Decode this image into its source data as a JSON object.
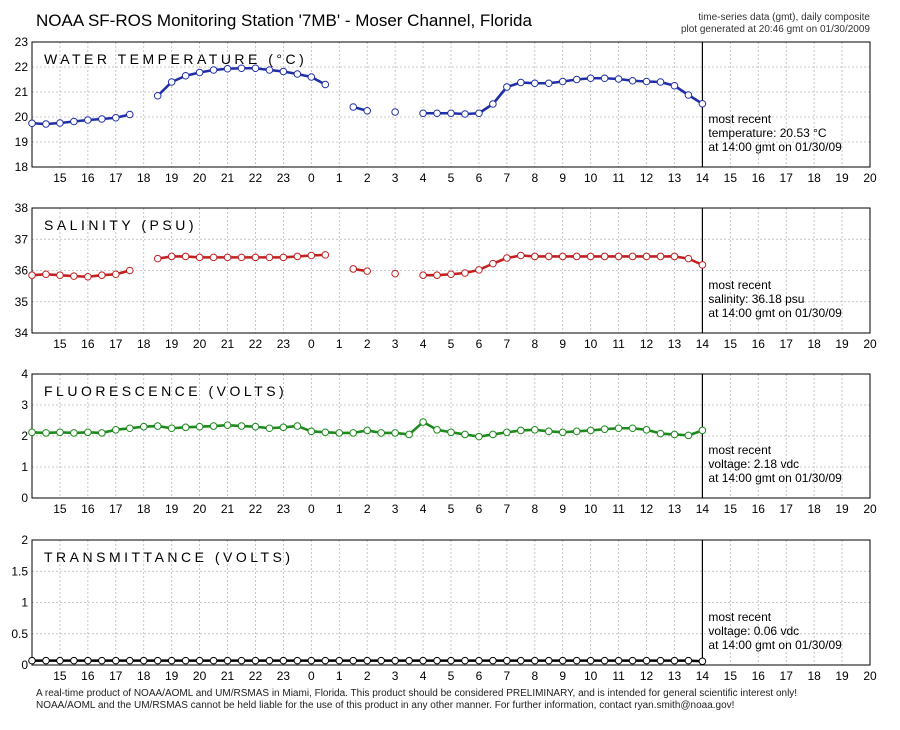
{
  "header": {
    "title": "NOAA SF-ROS Monitoring Station '7MB' - Moser Channel, Florida",
    "subtitle_line1": "time-series data (gmt), daily composite",
    "subtitle_line2": "plot generated at 20:46 gmt on 01/30/2009"
  },
  "footer": {
    "line1": "A real-time product of NOAA/AOML and UM/RSMAS in Miami, Florida. This product should be considered PRELIMINARY, and is intended for general scientific interest only!",
    "line2": "NOAA/AOML and the UM/RSMAS cannot be held liable for the use of this product in any other manner.  For further information, contact ryan.smith@noaa.gov!"
  },
  "x_axis": {
    "ticks": [
      {
        "x": 1,
        "label": "15"
      },
      {
        "x": 2,
        "label": "16"
      },
      {
        "x": 3,
        "label": "17"
      },
      {
        "x": 4,
        "label": "18"
      },
      {
        "x": 5,
        "label": "19"
      },
      {
        "x": 6,
        "label": "20"
      },
      {
        "x": 7,
        "label": "21"
      },
      {
        "x": 8,
        "label": "22"
      },
      {
        "x": 9,
        "label": "23"
      },
      {
        "x": 10,
        "label": "0"
      },
      {
        "x": 11,
        "label": "1"
      },
      {
        "x": 12,
        "label": "2"
      },
      {
        "x": 13,
        "label": "3"
      },
      {
        "x": 14,
        "label": "4"
      },
      {
        "x": 15,
        "label": "5"
      },
      {
        "x": 16,
        "label": "6"
      },
      {
        "x": 17,
        "label": "7"
      },
      {
        "x": 18,
        "label": "8"
      },
      {
        "x": 19,
        "label": "9"
      },
      {
        "x": 20,
        "label": "10"
      },
      {
        "x": 21,
        "label": "11"
      },
      {
        "x": 22,
        "label": "12"
      },
      {
        "x": 23,
        "label": "13"
      },
      {
        "x": 24,
        "label": "14"
      },
      {
        "x": 25,
        "label": "15"
      },
      {
        "x": 26,
        "label": "16"
      },
      {
        "x": 27,
        "label": "17"
      },
      {
        "x": 28,
        "label": "18"
      },
      {
        "x": 29,
        "label": "19"
      },
      {
        "x": 30,
        "label": "20"
      }
    ],
    "xlim": [
      0,
      30
    ],
    "now_x": 24
  },
  "chart_data": [
    {
      "type": "line",
      "title": "WATER TEMPERATURE (°C)",
      "color": "#1f2fa8",
      "ylim": [
        18,
        23
      ],
      "yticks": [
        "18",
        "19",
        "20",
        "21",
        "22",
        "23"
      ],
      "grid": true,
      "segments": [
        {
          "x": [
            0,
            0.5,
            1,
            1.5,
            2,
            2.5,
            3,
            3.5
          ],
          "y": [
            19.75,
            19.72,
            19.76,
            19.82,
            19.88,
            19.92,
            19.97,
            20.1
          ]
        },
        {
          "x": [
            4.5,
            5,
            5.5,
            6,
            6.5,
            7,
            7.5,
            8,
            8.5,
            9,
            9.5,
            10,
            10.5
          ],
          "y": [
            20.85,
            21.4,
            21.65,
            21.78,
            21.88,
            21.93,
            21.95,
            21.95,
            21.88,
            21.82,
            21.72,
            21.6,
            21.3
          ]
        },
        {
          "x": [
            11.5,
            12
          ],
          "y": [
            20.4,
            20.25
          ]
        },
        {
          "x": [
            13
          ],
          "y": [
            20.2
          ]
        },
        {
          "x": [
            14,
            14.5,
            15,
            15.5,
            16,
            16.5,
            17,
            17.5,
            18,
            18.5,
            19,
            19.5,
            20,
            20.5,
            21,
            21.5,
            22,
            22.5,
            23,
            23.5,
            24
          ],
          "y": [
            20.15,
            20.15,
            20.15,
            20.12,
            20.15,
            20.52,
            21.2,
            21.38,
            21.35,
            21.35,
            21.42,
            21.5,
            21.55,
            21.55,
            21.52,
            21.45,
            21.42,
            21.4,
            21.25,
            20.88,
            20.53
          ]
        }
      ],
      "note_lines": [
        "most recent",
        "temperature: 20.53 °C",
        "at 14:00 gmt on 01/30/09"
      ]
    },
    {
      "type": "line",
      "title": "SALINITY (PSU)",
      "color": "#c22020",
      "ylim": [
        34,
        38
      ],
      "yticks": [
        "34",
        "35",
        "36",
        "37",
        "38"
      ],
      "grid": true,
      "segments": [
        {
          "x": [
            0,
            0.5,
            1,
            1.5,
            2,
            2.5,
            3,
            3.5
          ],
          "y": [
            35.85,
            35.88,
            35.85,
            35.82,
            35.8,
            35.85,
            35.88,
            36.0
          ]
        },
        {
          "x": [
            4.5,
            5,
            5.5,
            6,
            6.5,
            7,
            7.5,
            8,
            8.5,
            9,
            9.5,
            10,
            10.5
          ],
          "y": [
            36.38,
            36.45,
            36.45,
            36.42,
            36.42,
            36.42,
            36.42,
            36.42,
            36.42,
            36.42,
            36.45,
            36.48,
            36.5
          ]
        },
        {
          "x": [
            11.5,
            12
          ],
          "y": [
            36.05,
            35.98
          ]
        },
        {
          "x": [
            13
          ],
          "y": [
            35.9
          ]
        },
        {
          "x": [
            14,
            14.5,
            15,
            15.5,
            16,
            16.5,
            17,
            17.5,
            18,
            18.5,
            19,
            19.5,
            20,
            20.5,
            21,
            21.5,
            22,
            22.5,
            23,
            23.5,
            24
          ],
          "y": [
            35.85,
            35.85,
            35.88,
            35.92,
            36.02,
            36.22,
            36.4,
            36.48,
            36.45,
            36.45,
            36.45,
            36.45,
            36.45,
            36.45,
            36.45,
            36.45,
            36.45,
            36.45,
            36.45,
            36.38,
            36.18
          ]
        }
      ],
      "note_lines": [
        "most recent",
        "salinity: 36.18 psu",
        "at 14:00 gmt on 01/30/09"
      ]
    },
    {
      "type": "line",
      "title": "FLUORESCENCE (VOLTS)",
      "color": "#1e8a1e",
      "ylim": [
        0,
        4
      ],
      "yticks": [
        "0",
        "1",
        "2",
        "3",
        "4"
      ],
      "grid": true,
      "segments": [
        {
          "x": [
            0,
            0.5,
            1,
            1.5,
            2,
            2.5,
            3,
            3.5,
            4,
            4.5,
            5,
            5.5,
            6,
            6.5,
            7,
            7.5,
            8,
            8.5,
            9,
            9.5,
            10,
            10.5,
            11,
            11.5,
            12,
            12.5,
            13,
            13.5,
            14,
            14.5,
            15,
            15.5,
            16,
            16.5,
            17,
            17.5,
            18,
            18.5,
            19,
            19.5,
            20,
            20.5,
            21,
            21.5,
            22,
            22.5,
            23,
            23.5,
            24
          ],
          "y": [
            2.12,
            2.1,
            2.12,
            2.1,
            2.12,
            2.1,
            2.2,
            2.25,
            2.3,
            2.32,
            2.25,
            2.28,
            2.3,
            2.32,
            2.35,
            2.32,
            2.3,
            2.25,
            2.28,
            2.32,
            2.15,
            2.12,
            2.1,
            2.1,
            2.18,
            2.1,
            2.1,
            2.05,
            2.45,
            2.2,
            2.12,
            2.05,
            1.98,
            2.05,
            2.12,
            2.18,
            2.2,
            2.15,
            2.12,
            2.15,
            2.18,
            2.22,
            2.25,
            2.25,
            2.2,
            2.08,
            2.05,
            2.02,
            2.18
          ]
        }
      ],
      "note_lines": [
        "most recent",
        "voltage: 2.18 vdc",
        "at 14:00 gmt on 01/30/09"
      ]
    },
    {
      "type": "line",
      "title": "TRANSMITTANCE (VOLTS)",
      "color": "#000000",
      "ylim": [
        0,
        2
      ],
      "yticks": [
        "0",
        "0.5",
        "1",
        "1.5",
        "2"
      ],
      "grid": true,
      "segments": [
        {
          "x": [
            0,
            0.5,
            1,
            1.5,
            2,
            2.5,
            3,
            3.5,
            4,
            4.5,
            5,
            5.5,
            6,
            6.5,
            7,
            7.5,
            8,
            8.5,
            9,
            9.5,
            10,
            10.5,
            11,
            11.5,
            12,
            12.5,
            13,
            13.5,
            14,
            14.5,
            15,
            15.5,
            16,
            16.5,
            17,
            17.5,
            18,
            18.5,
            19,
            19.5,
            20,
            20.5,
            21,
            21.5,
            22,
            22.5,
            23,
            23.5,
            24
          ],
          "y": [
            0.07,
            0.07,
            0.07,
            0.07,
            0.07,
            0.07,
            0.07,
            0.07,
            0.07,
            0.07,
            0.07,
            0.07,
            0.07,
            0.07,
            0.07,
            0.07,
            0.07,
            0.07,
            0.07,
            0.07,
            0.07,
            0.07,
            0.07,
            0.07,
            0.07,
            0.07,
            0.07,
            0.07,
            0.07,
            0.07,
            0.07,
            0.07,
            0.07,
            0.07,
            0.07,
            0.07,
            0.07,
            0.07,
            0.07,
            0.07,
            0.07,
            0.07,
            0.07,
            0.07,
            0.07,
            0.07,
            0.07,
            0.07,
            0.06
          ]
        }
      ],
      "note_lines": [
        "most recent",
        "voltage: 0.06 vdc",
        "at 14:00 gmt on 01/30/09"
      ]
    }
  ]
}
